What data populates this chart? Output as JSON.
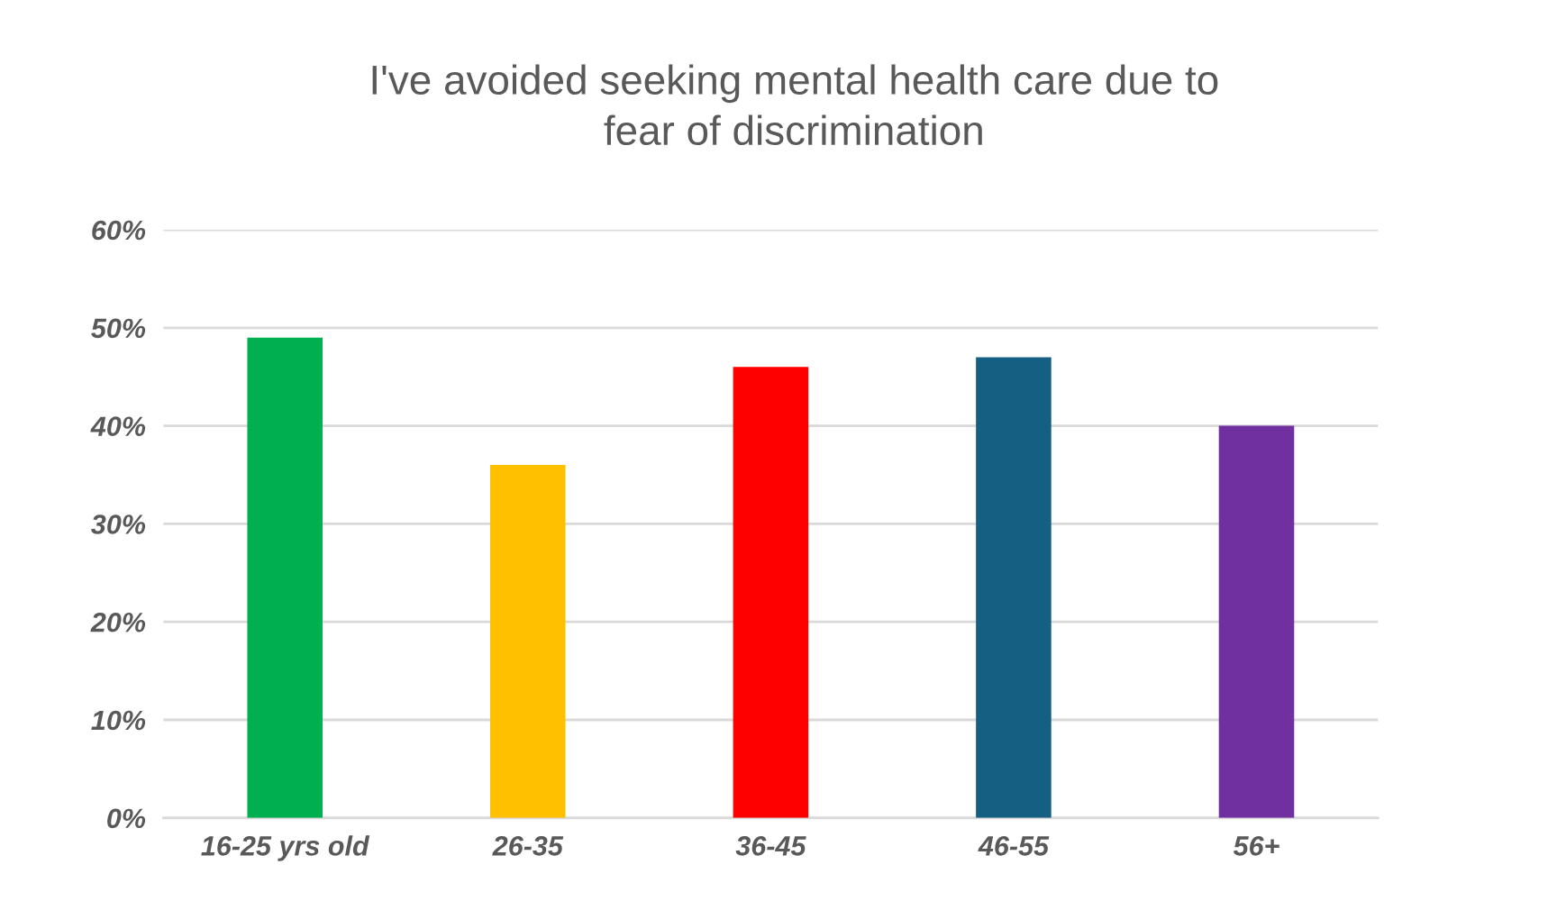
{
  "chart_data": {
    "type": "bar",
    "title": "I've avoided seeking mental health care due to\nfear of discrimination",
    "categories": [
      "16-25 yrs old",
      "26-35",
      "36-45",
      "46-55",
      "56+"
    ],
    "values": [
      49,
      36,
      46,
      47,
      40
    ],
    "colors": [
      "#00b050",
      "#ffc000",
      "#ff0000",
      "#156082",
      "#7030a0"
    ],
    "ylim": [
      0,
      60
    ],
    "yticks": [
      {
        "value": 0,
        "label": "0%"
      },
      {
        "value": 10,
        "label": "10%"
      },
      {
        "value": 20,
        "label": "20%"
      },
      {
        "value": 30,
        "label": "30%"
      },
      {
        "value": 40,
        "label": "40%"
      },
      {
        "value": 50,
        "label": "50%"
      },
      {
        "value": 60,
        "label": "60%"
      }
    ],
    "grid": "y"
  }
}
